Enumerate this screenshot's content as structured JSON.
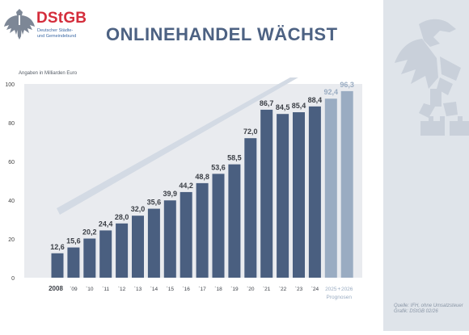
{
  "brand": {
    "name": "DStGB",
    "subtitle_line1": "Deutscher Städte-",
    "subtitle_line2": "und Gemeindebund"
  },
  "source_note": {
    "line1": "Quelle: IFH, ohne Umsatzsteuer",
    "line2": "Grafik: DStGB 02/26"
  },
  "chart_data": {
    "type": "bar",
    "title": "ONLINEHANDEL WÄCHST",
    "ylabel": "Angaben in Milliarden Euro",
    "xlabel": "",
    "ylim": [
      0,
      100
    ],
    "yticks": [
      0,
      20,
      40,
      60,
      80,
      100
    ],
    "categories": [
      "2008",
      "`09",
      "`10",
      "`11",
      "`12",
      "`13",
      "`14",
      "`15",
      "`16",
      "`17",
      "`18",
      "`19",
      "`20",
      "`21",
      "`22",
      "`23",
      "`24",
      "2025",
      "2026"
    ],
    "values": [
      12.6,
      15.6,
      20.2,
      24.4,
      28.0,
      32.0,
      35.6,
      39.9,
      44.2,
      48.8,
      53.6,
      58.5,
      72.0,
      86.7,
      84.5,
      85.4,
      88.4,
      92.4,
      96.3
    ],
    "value_labels": [
      "12,6",
      "15,6",
      "20,2",
      "24,4",
      "28,0",
      "32,0",
      "35,6",
      "39,9",
      "44,2",
      "48,8",
      "53,6",
      "58,5",
      "72,0",
      "86,7",
      "84,5",
      "85,4",
      "88,4",
      "92,4",
      "96,3"
    ],
    "forecast_joiner": "+",
    "forecast_label": "Prognosen",
    "colors": {
      "actual": "#4a5f80",
      "forecast": "#9aacc2",
      "plot_bg": "#e9ebef",
      "arrow": "#d3dae4",
      "label": "#3b3f46",
      "forecast_label_text": "#9aacc2"
    },
    "grid": false
  }
}
